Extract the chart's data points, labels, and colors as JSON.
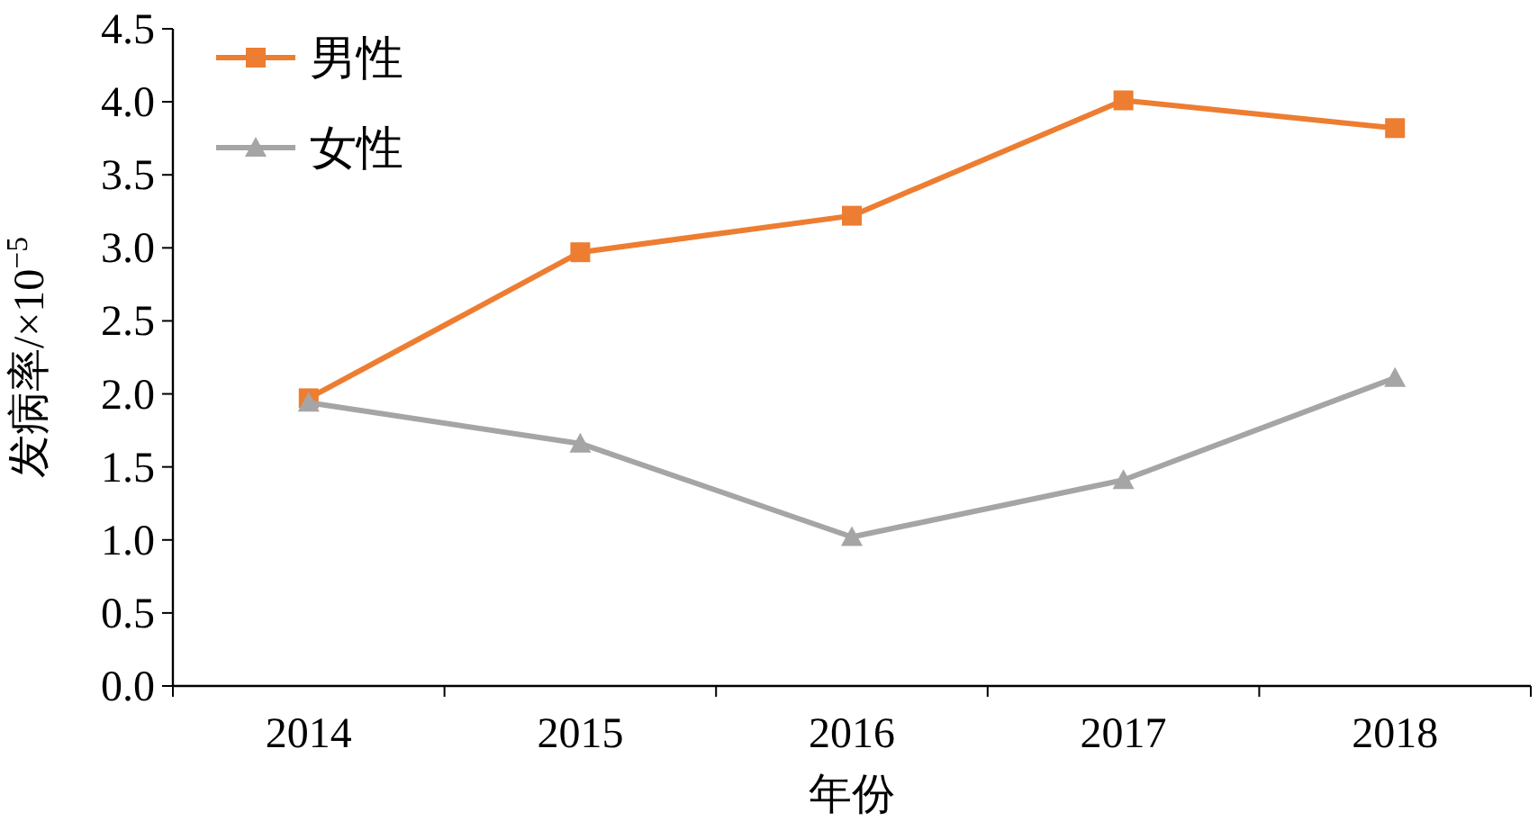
{
  "chart_data": {
    "type": "line",
    "xlabel": "年份",
    "ylabel": "发病率/×10$^{−5}$",
    "categories": [
      "2014",
      "2015",
      "2016",
      "2017",
      "2018"
    ],
    "series": [
      {
        "name": "男性",
        "color": "#ed7d31",
        "marker": "square",
        "values": [
          1.97,
          2.97,
          3.22,
          4.01,
          3.82
        ]
      },
      {
        "name": "女性",
        "color": "#a5a5a5",
        "marker": "triangle",
        "values": [
          1.94,
          1.66,
          1.02,
          1.41,
          2.11
        ]
      }
    ],
    "ylim": [
      0,
      4.5
    ],
    "yticks": [
      {
        "value": 0,
        "label": "0.0"
      },
      0.5,
      {
        "value": 1,
        "label": "1.0"
      },
      1.5,
      {
        "value": 2,
        "label": "2.0"
      },
      2.5,
      {
        "value": 3,
        "label": "3.0"
      },
      3.5,
      {
        "value": 4,
        "label": "4.0"
      },
      4.5
    ],
    "grid": false,
    "legend": "top left",
    "line_style": "solid"
  }
}
